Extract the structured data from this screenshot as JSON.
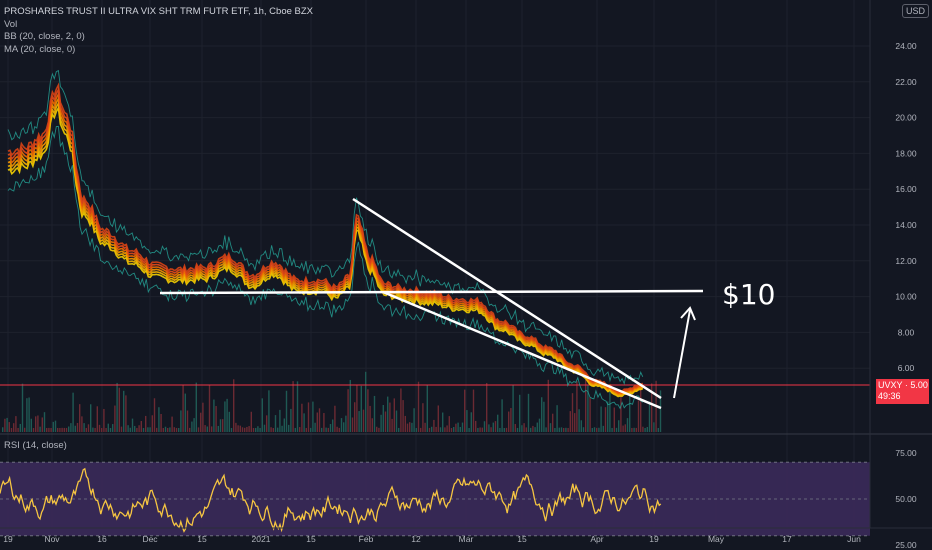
{
  "header": {
    "title": "PROSHARES TRUST II ULTRA VIX SHT TRM FUTR ETF, 1h, Cboe BZX",
    "indicators": [
      "Vol",
      "BB (20, close, 2, 0)",
      "MA (20, close, 0)"
    ],
    "rsi_label": "RSI (14, close)",
    "currency": "USD"
  },
  "price_tag": {
    "symbol_price": "UVXY · 5.00",
    "countdown": "49:36"
  },
  "annotation": {
    "target_text": "$10"
  },
  "colors": {
    "background": "#131722",
    "ma_band_outer": "#f5b400",
    "ma_band_inner": "#e64a19",
    "bb": "#26a69a",
    "rsi_line": "#f5c542",
    "rsi_band": "#3b2a5a",
    "annotation": "#ffffff",
    "price_line": "#f23645"
  },
  "chart_data": [
    {
      "type": "line",
      "title": "PROSHARES TRUST II ULTRA VIX SHT TRM FUTR ETF, 1h, Cboe BZX",
      "x_tick_labels": [
        "19",
        "Nov",
        "16",
        "Dec",
        "15",
        "2021",
        "15",
        "Feb",
        "12",
        "Mar",
        "15",
        "Apr",
        "19",
        "May",
        "17",
        "Jun"
      ],
      "y_tick_labels": [
        "24.00",
        "22.00",
        "20.00",
        "18.00",
        "16.00",
        "14.00",
        "12.00",
        "10.00",
        "8.00",
        "6.00"
      ],
      "ylim": [
        4.0,
        25.0
      ],
      "series": [
        {
          "x": [
            "Oct 19",
            "Oct 24",
            "Oct 29",
            "Nov 2",
            "Nov 5",
            "Nov 10",
            "Nov 16",
            "Nov 24",
            "Dec 1",
            "Dec 8",
            "Dec 15",
            "Dec 22",
            "Dec 29",
            "Jan 4",
            "Jan 11",
            "Jan 18",
            "Jan 22",
            "Jan 26",
            "Jan 28",
            "Feb 1",
            "Feb 5",
            "Feb 12",
            "Feb 19",
            "Feb 26",
            "Mar 4",
            "Mar 11",
            "Mar 18",
            "Mar 25",
            "Apr 1",
            "Apr 8",
            "Apr 15",
            "Apr 21"
          ],
          "values": [
            17.6,
            17.8,
            18.5,
            21.0,
            19.5,
            15.0,
            13.3,
            12.2,
            11.4,
            11.2,
            11.3,
            11.9,
            10.9,
            11.6,
            10.6,
            10.6,
            10.2,
            10.8,
            14.0,
            11.8,
            10.4,
            10.1,
            9.9,
            9.6,
            9.5,
            8.4,
            7.6,
            6.9,
            6.0,
            5.1,
            4.6,
            5.0
          ]
        }
      ],
      "annotations": [
        "$10"
      ]
    },
    {
      "type": "line",
      "title": "RSI (14, close)",
      "y_tick_labels": [
        "75.00",
        "50.00",
        "25.00"
      ],
      "ylim": [
        18,
        88
      ],
      "band": [
        30,
        70
      ]
    }
  ]
}
